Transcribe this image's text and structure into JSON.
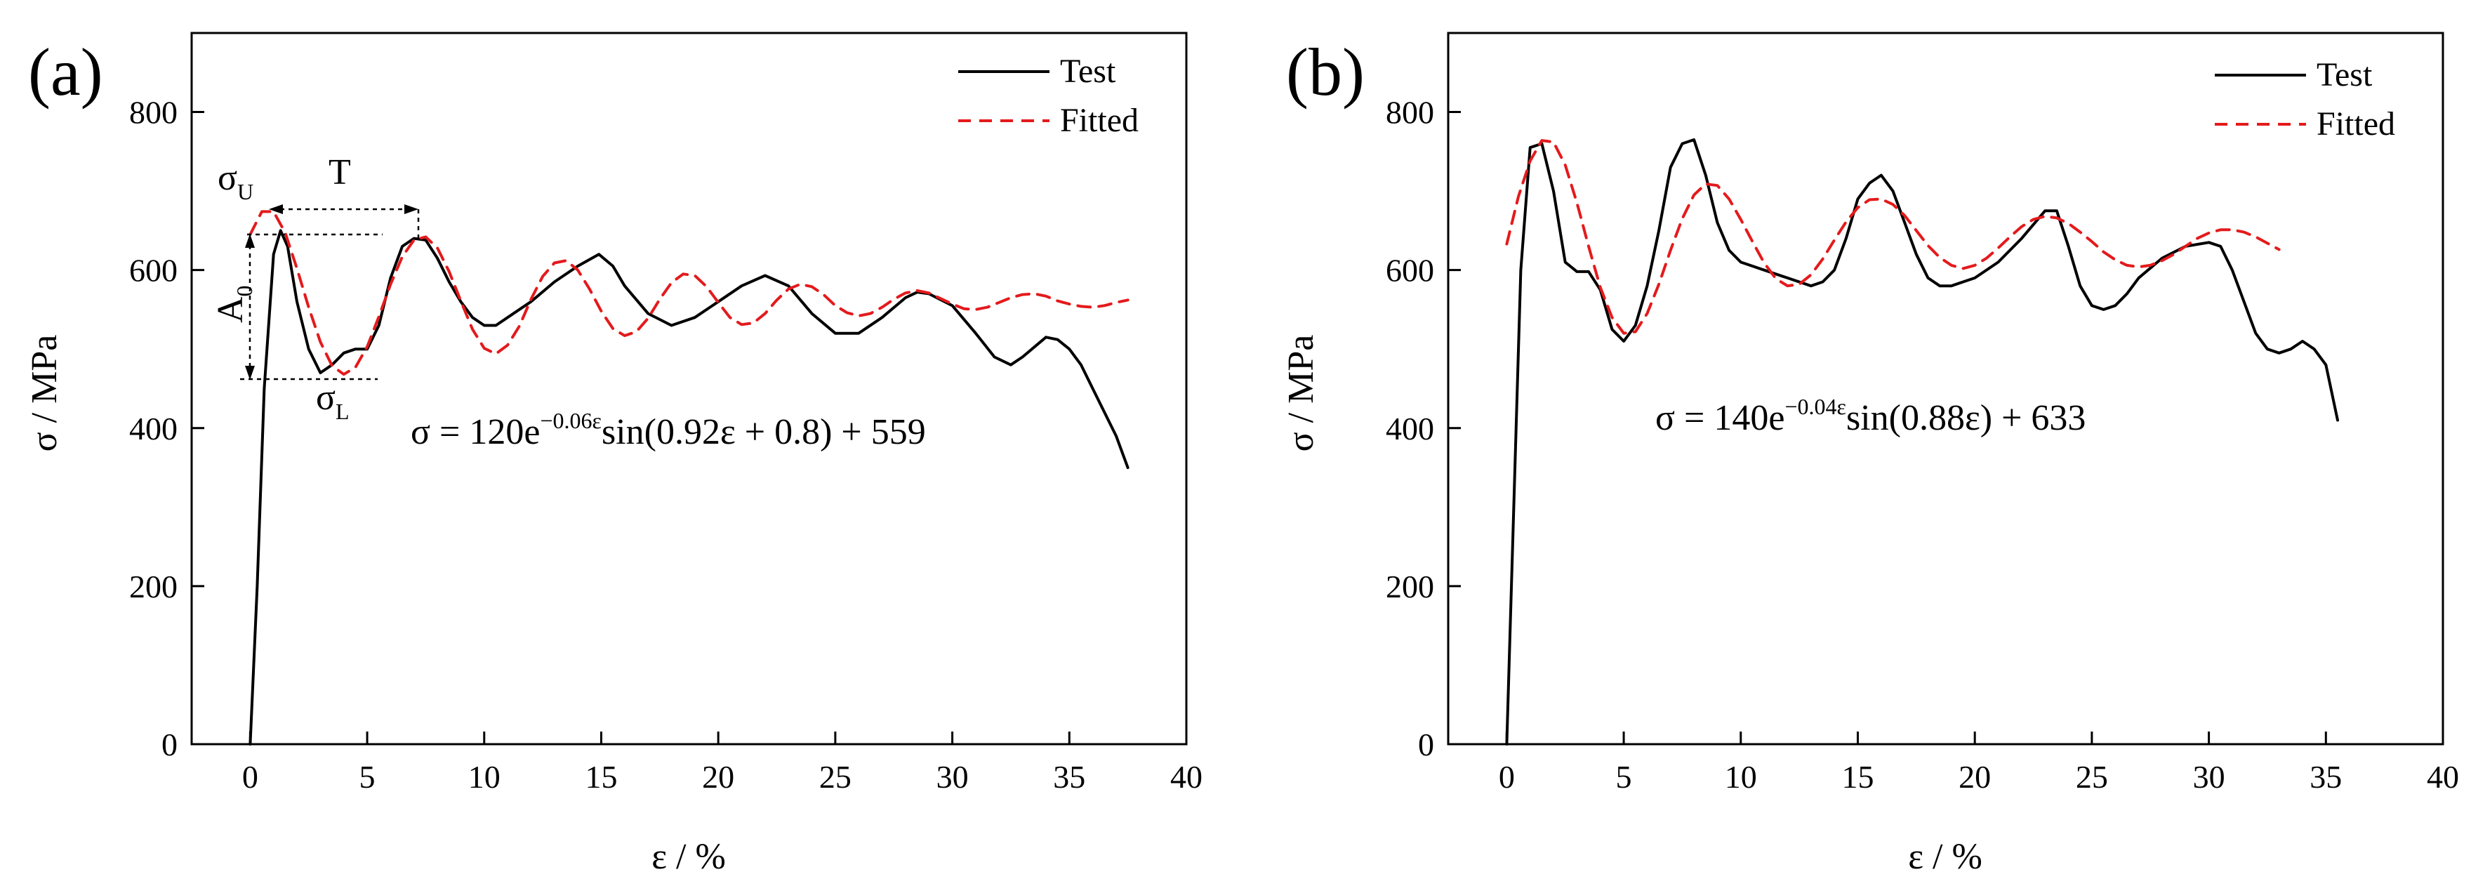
{
  "chart_data": [
    {
      "type": "line",
      "panel_label": "(a)",
      "xlabel": "ε / %",
      "ylabel": "σ / MPa",
      "xlim": [
        -2.5,
        40
      ],
      "ylim": [
        0,
        900
      ],
      "xticks": [
        0,
        5,
        10,
        15,
        20,
        25,
        30,
        35,
        40
      ],
      "yticks": [
        0,
        200,
        400,
        600,
        800
      ],
      "legend": {
        "position": "top-right",
        "entries": [
          "Test",
          "Fitted"
        ]
      },
      "series": [
        {
          "name": "Test",
          "style": "solid",
          "color": "#000000",
          "x": [
            0,
            0.3,
            0.6,
            1.0,
            1.3,
            1.6,
            2.0,
            2.5,
            3.0,
            3.5,
            4.0,
            4.5,
            5.0,
            5.5,
            6.0,
            6.5,
            7.0,
            7.5,
            8.0,
            8.5,
            9.0,
            9.5,
            10.0,
            10.5,
            11.0,
            12.0,
            13.0,
            14.0,
            14.9,
            15.5,
            16.0,
            17.0,
            18.0,
            19.0,
            20.0,
            21.0,
            22.0,
            23.0,
            24.0,
            25.0,
            26.0,
            27.0,
            28.0,
            28.5,
            29.0,
            30.0,
            31.0,
            31.8,
            32.5,
            33.0,
            34.0,
            34.5,
            35.0,
            35.5,
            36.0,
            36.5,
            37.0,
            37.5
          ],
          "y": [
            0,
            200,
            450,
            620,
            650,
            630,
            560,
            500,
            470,
            480,
            495,
            500,
            500,
            530,
            590,
            630,
            640,
            638,
            615,
            585,
            560,
            540,
            530,
            530,
            540,
            560,
            585,
            605,
            620,
            605,
            580,
            545,
            530,
            540,
            560,
            580,
            593,
            580,
            545,
            520,
            520,
            540,
            565,
            572,
            570,
            555,
            520,
            490,
            480,
            490,
            515,
            512,
            500,
            480,
            450,
            420,
            390,
            350
          ]
        },
        {
          "name": "Fitted",
          "style": "dashed",
          "color": "#e41a1c",
          "x": [
            0,
            0.5,
            1.0,
            1.5,
            2.0,
            2.5,
            3.0,
            3.5,
            4.0,
            4.5,
            5.0,
            5.5,
            6.0,
            6.5,
            7.0,
            7.5,
            8.0,
            8.5,
            9.0,
            9.5,
            10.0,
            10.5,
            11.0,
            11.5,
            12.0,
            12.5,
            13.0,
            13.5,
            14.0,
            14.5,
            15.0,
            15.5,
            16.0,
            16.5,
            17.0,
            17.5,
            18.0,
            18.5,
            19.0,
            19.5,
            20.0,
            20.5,
            21.0,
            21.5,
            22.0,
            22.5,
            23.0,
            23.5,
            24.0,
            24.5,
            25.0,
            25.5,
            26.0,
            26.5,
            27.0,
            27.5,
            28.0,
            28.5,
            29.0,
            29.5,
            30.0,
            30.5,
            31.0,
            31.5,
            32.0,
            32.5,
            33.0,
            33.5,
            34.0,
            34.5,
            35.0,
            35.5,
            36.0,
            36.5,
            37.0,
            37.5
          ],
          "y": [
            645,
            674,
            674,
            647,
            602,
            553,
            509,
            479,
            468,
            477,
            503,
            541,
            582,
            617,
            638,
            642,
            628,
            598,
            561,
            525,
            501,
            494,
            505,
            529,
            563,
            592,
            609,
            612,
            600,
            576,
            548,
            526,
            517,
            522,
            539,
            563,
            584,
            595,
            593,
            579,
            559,
            540,
            531,
            533,
            545,
            562,
            576,
            582,
            579,
            569,
            555,
            546,
            542,
            545,
            553,
            563,
            571,
            574,
            571,
            564,
            557,
            551,
            550,
            553,
            559,
            565,
            569,
            570,
            567,
            561,
            557,
            554,
            553,
            555,
            559,
            562
          ]
        }
      ],
      "annotations": [
        "σ_U",
        "σ_L",
        "A_0",
        "T"
      ],
      "equation": "σ = 120e^(−0.06ε)sin(0.92ε + 0.8) + 559"
    },
    {
      "type": "line",
      "panel_label": "(b)",
      "xlabel": "ε / %",
      "ylabel": "σ / MPa",
      "xlim": [
        -2.5,
        40
      ],
      "ylim": [
        0,
        900
      ],
      "xticks": [
        0,
        5,
        10,
        15,
        20,
        25,
        30,
        35,
        40
      ],
      "yticks": [
        0,
        200,
        400,
        600,
        800
      ],
      "legend": {
        "position": "top-right",
        "entries": [
          "Test",
          "Fitted"
        ]
      },
      "series": [
        {
          "name": "Test",
          "style": "solid",
          "color": "#000000",
          "x": [
            0,
            0.3,
            0.6,
            1.0,
            1.5,
            2.0,
            2.5,
            3.0,
            3.5,
            4.0,
            4.5,
            5.0,
            5.5,
            6.0,
            6.5,
            7.0,
            7.5,
            8.0,
            8.5,
            9.0,
            9.5,
            10.0,
            10.5,
            11.0,
            12.0,
            13.0,
            13.5,
            14.0,
            14.5,
            15.0,
            15.5,
            16.0,
            16.5,
            17.0,
            17.5,
            18.0,
            18.5,
            19.0,
            19.5,
            20.0,
            21.0,
            22.0,
            23.0,
            23.5,
            24.0,
            24.5,
            25.0,
            25.5,
            26.0,
            26.5,
            27.0,
            28.0,
            29.0,
            30.0,
            30.5,
            31.0,
            31.5,
            32.0,
            32.5,
            33.0,
            33.5,
            34.0,
            34.5,
            35.0,
            35.5
          ],
          "y": [
            0,
            300,
            600,
            755,
            760,
            700,
            610,
            598,
            598,
            575,
            525,
            510,
            530,
            580,
            650,
            730,
            760,
            765,
            720,
            660,
            625,
            610,
            605,
            600,
            590,
            580,
            585,
            600,
            640,
            690,
            710,
            720,
            700,
            660,
            620,
            590,
            580,
            580,
            585,
            590,
            610,
            640,
            675,
            675,
            630,
            580,
            555,
            550,
            555,
            570,
            590,
            615,
            630,
            635,
            630,
            600,
            560,
            520,
            500,
            495,
            500,
            510,
            500,
            480,
            410
          ]
        },
        {
          "name": "Fitted",
          "style": "dashed",
          "color": "#e41a1c",
          "x": [
            0,
            0.5,
            1.0,
            1.5,
            2.0,
            2.5,
            3.0,
            3.5,
            4.0,
            4.5,
            5.0,
            5.5,
            6.0,
            6.5,
            7.0,
            7.5,
            8.0,
            8.5,
            9.0,
            9.5,
            10.0,
            10.5,
            11.0,
            11.5,
            12.0,
            12.5,
            13.0,
            13.5,
            14.0,
            14.5,
            15.0,
            15.5,
            16.0,
            16.5,
            17.0,
            17.5,
            18.0,
            18.5,
            19.0,
            19.5,
            20.0,
            20.5,
            21.0,
            21.5,
            22.0,
            22.5,
            23.0,
            23.5,
            24.0,
            24.5,
            25.0,
            25.5,
            26.0,
            26.5,
            27.0,
            27.5,
            28.0,
            28.5,
            29.0,
            29.5,
            30.0,
            30.5,
            31.0,
            31.5,
            32.0,
            32.5,
            33.0
          ],
          "y": [
            633,
            693,
            738,
            764,
            762,
            733,
            685,
            630,
            578,
            540,
            520,
            522,
            545,
            582,
            625,
            665,
            695,
            709,
            707,
            690,
            664,
            636,
            609,
            589,
            580,
            582,
            594,
            614,
            638,
            661,
            679,
            689,
            690,
            683,
            669,
            650,
            631,
            616,
            606,
            602,
            606,
            615,
            628,
            642,
            655,
            664,
            668,
            666,
            659,
            648,
            636,
            623,
            613,
            606,
            604,
            606,
            612,
            620,
            630,
            640,
            647,
            651,
            651,
            648,
            642,
            634,
            626
          ]
        }
      ],
      "equation": "σ = 140e^(−0.04ε)sin(0.88ε) + 633"
    }
  ],
  "text": {
    "panel_a": "(a)",
    "panel_b": "(b)",
    "xlabel": "ε / %",
    "ylabel": "σ / MPa",
    "legend_test": "Test",
    "legend_fitted": "Fitted",
    "a_sigmaU_base": "σ",
    "a_sigmaU_sub": "U",
    "a_sigmaL_base": "σ",
    "a_sigmaL_sub": "L",
    "a_A0_base": "A",
    "a_A0_sub": "0",
    "a_T": "T",
    "eq_a_lhs": "σ = ",
    "eq_a_coef": "120e",
    "eq_a_exp": "−0.06ε",
    "eq_a_rest": "sin(0.92ε + 0.8) + 559",
    "eq_b_lhs": "σ = ",
    "eq_b_coef": "140e",
    "eq_b_exp": "−0.04ε",
    "eq_b_rest": "sin(0.88ε) + 633"
  }
}
